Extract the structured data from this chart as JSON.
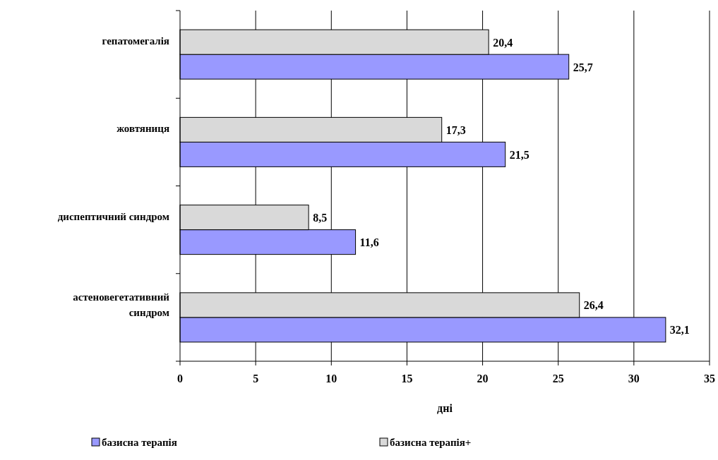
{
  "chart_data": {
    "type": "bar",
    "orientation": "horizontal",
    "xlabel": "дні",
    "categories": [
      "гепатомегалія",
      "жовтяниця",
      "диспептичний синдром",
      "астеновегетативний синдром"
    ],
    "series": [
      {
        "name": "базисна терапія",
        "color": "#9999ff",
        "values": [
          25.7,
          21.5,
          11.6,
          32.1
        ],
        "value_labels": [
          "25,7",
          "21,5",
          "11,6",
          "32,1"
        ]
      },
      {
        "name": "базисна терапія+",
        "color": "#d9d9d9",
        "values": [
          20.4,
          17.3,
          8.5,
          26.4
        ],
        "value_labels": [
          "20,4",
          "17,3",
          "8,5",
          "26,4"
        ]
      }
    ],
    "xlim": [
      0,
      35
    ],
    "xticks": [
      0,
      5,
      10,
      15,
      20,
      25,
      30,
      35
    ],
    "grid": "x",
    "legend": "bottom"
  }
}
